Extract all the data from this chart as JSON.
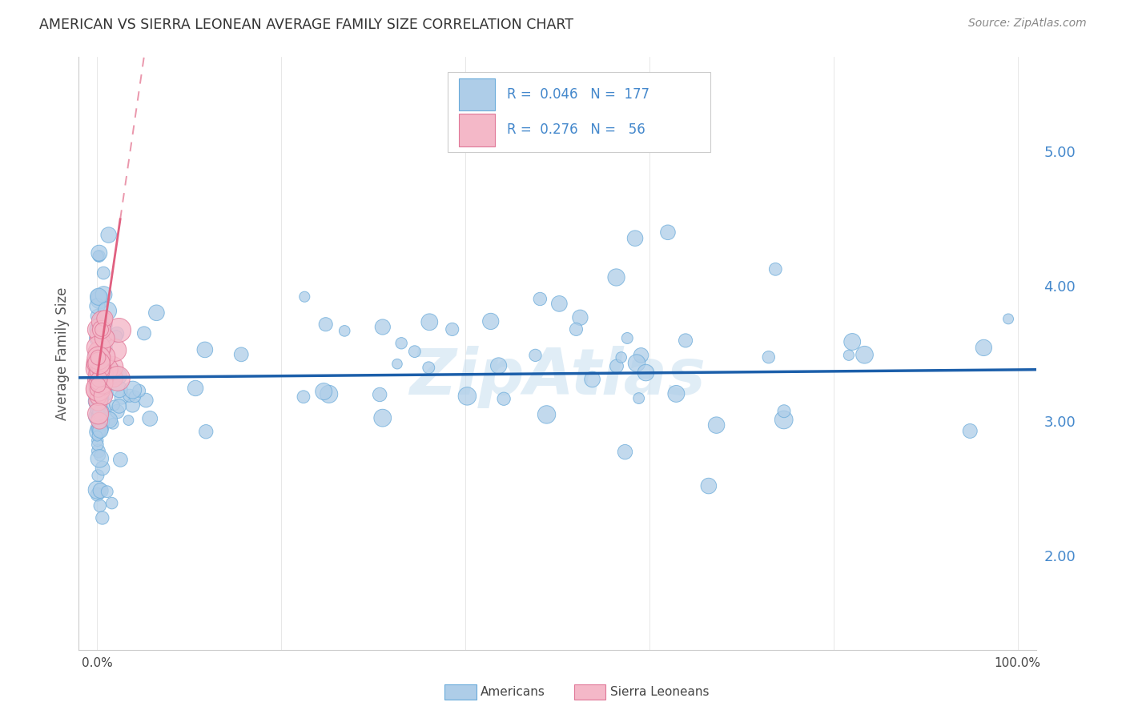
{
  "title": "AMERICAN VS SIERRA LEONEAN AVERAGE FAMILY SIZE CORRELATION CHART",
  "source": "Source: ZipAtlas.com",
  "ylabel": "Average Family Size",
  "yticks": [
    2.0,
    3.0,
    4.0,
    5.0
  ],
  "ylim": [
    1.3,
    5.7
  ],
  "xlim": [
    -0.02,
    1.02
  ],
  "legend_entries": [
    {
      "label": "Americans",
      "color": "#aecde8",
      "edge": "#6aabda",
      "R": "0.046",
      "N": "177"
    },
    {
      "label": "Sierra Leoneans",
      "color": "#f4b8c8",
      "edge": "#e07898",
      "R": "0.276",
      "N": "56"
    }
  ],
  "blue_trend_color": "#1c5faa",
  "pink_trend_color": "#e06080",
  "watermark_color": "#c8dff0",
  "background_color": "#ffffff",
  "grid_color": "#dddddd",
  "title_color": "#333333",
  "source_color": "#888888",
  "ytick_color": "#4488cc",
  "xtick_color": "#444444"
}
